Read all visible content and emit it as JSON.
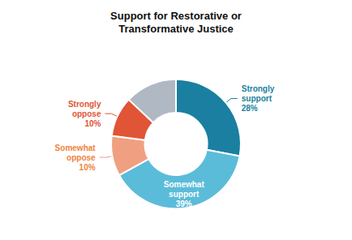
{
  "chart_data": {
    "type": "pie",
    "title": "Support for Restorative or\nTransformative Justice",
    "categories": [
      "Strongly\nsupport\n28%",
      "Somewhat\nsupport\n39%",
      "Somewhat\noppose\n10%",
      "Strongly\noppose\n10%",
      null
    ],
    "values": [
      28,
      39,
      10,
      10,
      13
    ],
    "colors": [
      "#1a7fa0",
      "#5bbcd9",
      "#f0a080",
      "#e05535",
      "#b0b8c4"
    ],
    "label_colors": [
      "#1a7fa0",
      "#ffffff",
      "#f0823c",
      "#e05535",
      null
    ]
  }
}
